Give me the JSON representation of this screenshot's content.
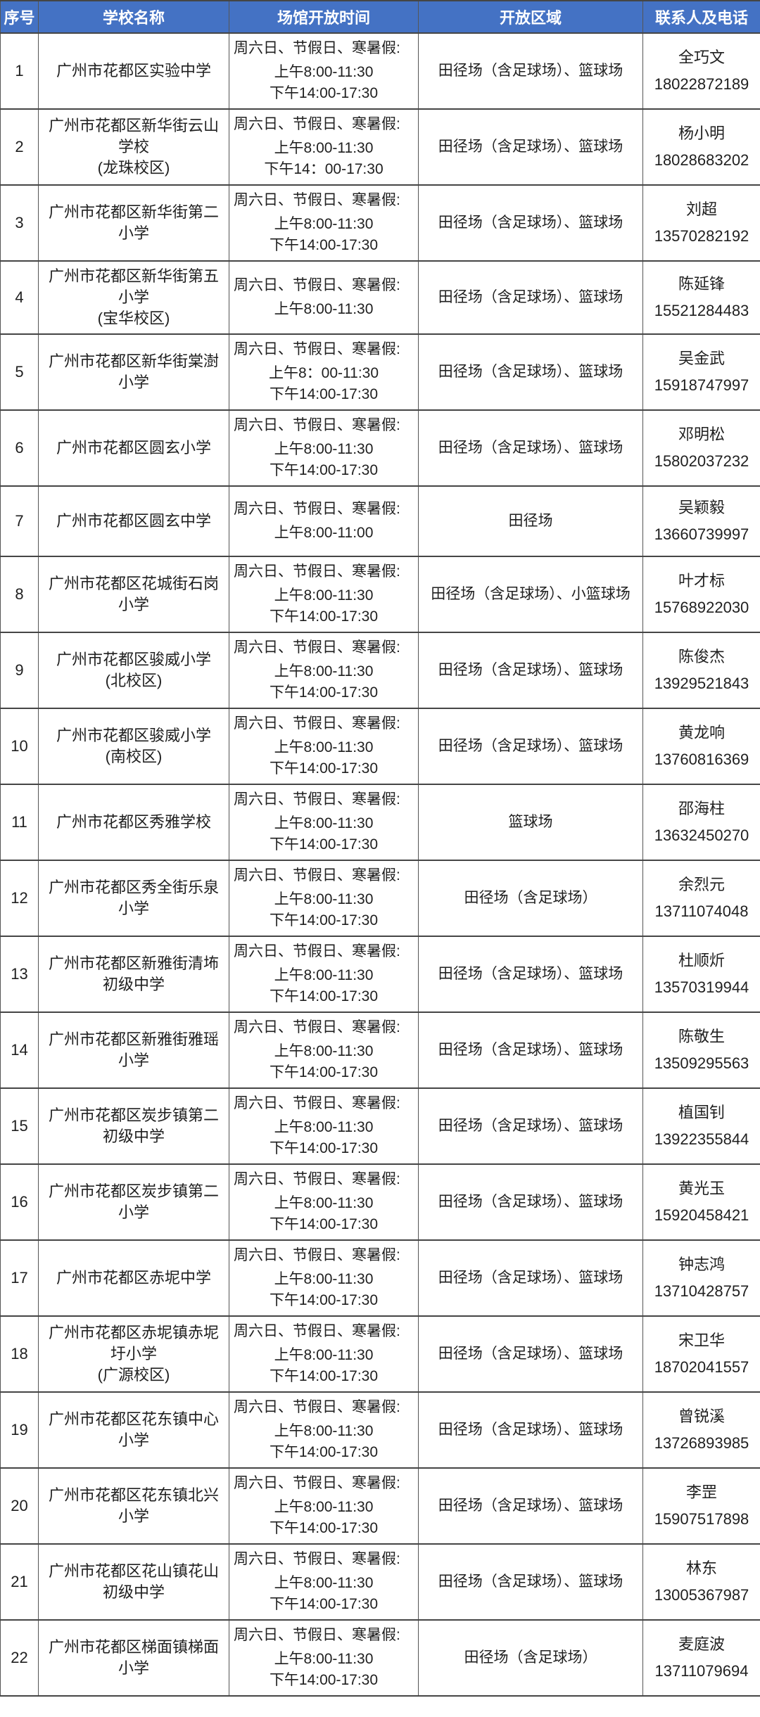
{
  "colors": {
    "header_bg": "#4472C4",
    "header_text": "#FFFFFF",
    "border": "#4A4A4A",
    "text": "#1F1F1F"
  },
  "table": {
    "columns": [
      {
        "label": "序号"
      },
      {
        "label": "学校名称"
      },
      {
        "label": "场馆开放时间"
      },
      {
        "label": "开放区域"
      },
      {
        "label": "联系人及电话"
      }
    ],
    "rows": [
      {
        "no": "1",
        "school": "广州市花都区实验中学",
        "campus": "",
        "time": [
          "周六日、节假日、寒暑假:",
          "上午8:00-11:30",
          "下午14:00-17:30"
        ],
        "area": "田径场（含足球场）、篮球场",
        "contact": "全巧文",
        "phone": "18022872189"
      },
      {
        "no": "2",
        "school": "广州市花都区新华街云山学校",
        "campus": "(龙珠校区)",
        "time": [
          "周六日、节假日、寒暑假:",
          "上午8:00-11:30",
          "下午14：00-17:30"
        ],
        "area": "田径场（含足球场）、篮球场",
        "contact": "杨小明",
        "phone": "18028683202"
      },
      {
        "no": "3",
        "school": "广州市花都区新华街第二小学",
        "campus": "",
        "time": [
          "周六日、节假日、寒暑假:",
          "上午8:00-11:30",
          "下午14:00-17:30"
        ],
        "area": "田径场（含足球场）、篮球场",
        "contact": "刘超",
        "phone": "13570282192"
      },
      {
        "no": "4",
        "school": "广州市花都区新华街第五小学",
        "campus": "(宝华校区)",
        "time": [
          "周六日、节假日、寒暑假:",
          "上午8:00-11:30"
        ],
        "area": "田径场（含足球场）、篮球场",
        "contact": "陈延锋",
        "phone": "15521284483"
      },
      {
        "no": "5",
        "school": "广州市花都区新华街棠澍小学",
        "campus": "",
        "time": [
          "周六日、节假日、寒暑假:",
          "上午8：00-11:30",
          "下午14:00-17:30"
        ],
        "area": "田径场（含足球场）、篮球场",
        "contact": "吴金武",
        "phone": "15918747997"
      },
      {
        "no": "6",
        "school": "广州市花都区圆玄小学",
        "campus": "",
        "time": [
          "周六日、节假日、寒暑假:",
          "上午8:00-11:30",
          "下午14:00-17:30"
        ],
        "area": "田径场（含足球场）、篮球场",
        "contact": "邓明松",
        "phone": "15802037232"
      },
      {
        "no": "7",
        "school": "广州市花都区圆玄中学",
        "campus": "",
        "time": [
          "周六日、节假日、寒暑假:",
          "上午8:00-11:00"
        ],
        "area": "田径场",
        "contact": "吴颖毅",
        "phone": "13660739997"
      },
      {
        "no": "8",
        "school": "广州市花都区花城街石岗小学",
        "campus": "",
        "time": [
          "周六日、节假日、寒暑假:",
          "上午8:00-11:30",
          "下午14:00-17:30"
        ],
        "area": "田径场（含足球场）、小篮球场",
        "contact": "叶才标",
        "phone": "15768922030"
      },
      {
        "no": "9",
        "school": "广州市花都区骏威小学",
        "campus": "(北校区)",
        "time": [
          "周六日、节假日、寒暑假:",
          "上午8:00-11:30",
          "下午14:00-17:30"
        ],
        "area": "田径场（含足球场）、篮球场",
        "contact": "陈俊杰",
        "phone": "13929521843"
      },
      {
        "no": "10",
        "school": "广州市花都区骏威小学",
        "campus": "(南校区)",
        "time": [
          "周六日、节假日、寒暑假:",
          "上午8:00-11:30",
          "下午14:00-17:30"
        ],
        "area": "田径场（含足球场）、篮球场",
        "contact": "黄龙响",
        "phone": "13760816369"
      },
      {
        "no": "11",
        "school": "广州市花都区秀雅学校",
        "campus": "",
        "time": [
          "周六日、节假日、寒暑假:",
          "上午8:00-11:30",
          "下午14:00-17:30"
        ],
        "area": "篮球场",
        "contact": "邵海柱",
        "phone": "13632450270"
      },
      {
        "no": "12",
        "school": "广州市花都区秀全街乐泉小学",
        "campus": "",
        "time": [
          "周六日、节假日、寒暑假:",
          "上午8:00-11:30",
          "下午14:00-17:30"
        ],
        "area": "田径场（含足球场）",
        "contact": "余烈元",
        "phone": "13711074048"
      },
      {
        "no": "13",
        "school": "广州市花都区新雅街清㘵初级中学",
        "campus": "",
        "time": [
          "周六日、节假日、寒暑假:",
          "上午8:00-11:30",
          "下午14:00-17:30"
        ],
        "area": "田径场（含足球场）、篮球场",
        "contact": "杜顺炘",
        "phone": "13570319944"
      },
      {
        "no": "14",
        "school": "广州市花都区新雅街雅瑶小学",
        "campus": "",
        "time": [
          "周六日、节假日、寒暑假:",
          "上午8:00-11:30",
          "下午14:00-17:30"
        ],
        "area": "田径场（含足球场）、篮球场",
        "contact": "陈敬生",
        "phone": "13509295563"
      },
      {
        "no": "15",
        "school": "广州市花都区炭步镇第二初级中学",
        "campus": "",
        "time": [
          "周六日、节假日、寒暑假:",
          "上午8:00-11:30",
          "下午14:00-17:30"
        ],
        "area": "田径场（含足球场）、篮球场",
        "contact": "植国钊",
        "phone": "13922355844"
      },
      {
        "no": "16",
        "school": "广州市花都区炭步镇第二小学",
        "campus": "",
        "time": [
          "周六日、节假日、寒暑假:",
          "上午8:00-11:30",
          "下午14:00-17:30"
        ],
        "area": "田径场（含足球场）、篮球场",
        "contact": "黄光玉",
        "phone": "15920458421"
      },
      {
        "no": "17",
        "school": "广州市花都区赤坭中学",
        "campus": "",
        "time": [
          "周六日、节假日、寒暑假:",
          "上午8:00-11:30",
          "下午14:00-17:30"
        ],
        "area": "田径场（含足球场）、篮球场",
        "contact": "钟志鸿",
        "phone": "13710428757"
      },
      {
        "no": "18",
        "school": "广州市花都区赤坭镇赤坭圩小学",
        "campus": "(广源校区)",
        "time": [
          "周六日、节假日、寒暑假:",
          "上午8:00-11:30",
          "下午14:00-17:30"
        ],
        "area": "田径场（含足球场）、篮球场",
        "contact": "宋卫华",
        "phone": "18702041557"
      },
      {
        "no": "19",
        "school": "广州市花都区花东镇中心小学",
        "campus": "",
        "time": [
          "周六日、节假日、寒暑假:",
          "上午8:00-11:30",
          "下午14:00-17:30"
        ],
        "area": "田径场（含足球场）、篮球场",
        "contact": "曾锐溪",
        "phone": "13726893985"
      },
      {
        "no": "20",
        "school": "广州市花都区花东镇北兴小学",
        "campus": "",
        "time": [
          "周六日、节假日、寒暑假:",
          "上午8:00-11:30",
          "下午14:00-17:30"
        ],
        "area": "田径场（含足球场）、篮球场",
        "contact": "李罡",
        "phone": "15907517898"
      },
      {
        "no": "21",
        "school": "广州市花都区花山镇花山初级中学",
        "campus": "",
        "time": [
          "周六日、节假日、寒暑假:",
          "上午8:00-11:30",
          "下午14:00-17:30"
        ],
        "area": "田径场（含足球场）、篮球场",
        "contact": "林东",
        "phone": "13005367987"
      },
      {
        "no": "22",
        "school": "广州市花都区梯面镇梯面小学",
        "campus": "",
        "time": [
          "周六日、节假日、寒暑假:",
          "上午8:00-11:30",
          "下午14:00-17:30"
        ],
        "area": "田径场（含足球场）",
        "contact": "麦庭波",
        "phone": "13711079694"
      }
    ]
  }
}
